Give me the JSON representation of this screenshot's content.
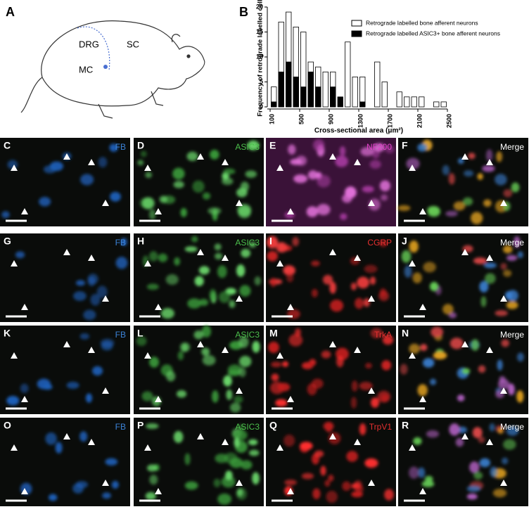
{
  "panel_a": {
    "letter": "A",
    "labels": [
      "DRG",
      "SC",
      "MC"
    ]
  },
  "chart_data": {
    "type": "histogram",
    "letter": "B",
    "x_label": "Cross-sectional area (μm²)",
    "y_label": "Frequency of retrograde labelled cells",
    "bins": [
      100,
      200,
      300,
      400,
      500,
      600,
      700,
      800,
      900,
      1000,
      1100,
      1200,
      1300,
      1400,
      1500,
      1600,
      1700,
      1800,
      1900,
      2000,
      2100,
      2200,
      2300,
      2400,
      2500
    ],
    "series": [
      {
        "name": "Retrograde labelled bone afferent neurons",
        "color": "#ffffff",
        "values": [
          4,
          17,
          19,
          16,
          15,
          9,
          8,
          7,
          7,
          0,
          13,
          6,
          6,
          0,
          9,
          5,
          0,
          3,
          2,
          2,
          2,
          0,
          1,
          1
        ]
      },
      {
        "name": "Retrograde labelled ASIC3+ bone afferent neurons",
        "color": "#000000",
        "values": [
          1,
          7,
          9,
          6,
          4,
          7,
          4,
          0,
          4,
          2,
          0,
          0,
          1,
          0,
          0,
          0,
          0,
          0,
          0,
          0,
          0,
          0,
          0,
          0
        ]
      }
    ],
    "xlim": [
      100,
      2500
    ],
    "xticks": [
      100,
      500,
      900,
      1300,
      1700,
      2100,
      2500
    ],
    "ylim": [
      0,
      20
    ],
    "yticks": [
      0,
      5,
      10,
      15,
      20
    ],
    "legend": "top-right"
  },
  "panels": [
    {
      "letter": "C",
      "stain": "FB",
      "color": "#3b82d6"
    },
    {
      "letter": "D",
      "stain": "ASIC3",
      "color": "#4cbf4c"
    },
    {
      "letter": "E",
      "stain": "NF200",
      "color": "#e040c8"
    },
    {
      "letter": "F",
      "stain": "Merge",
      "color": "#ffffff"
    },
    {
      "letter": "G",
      "stain": "FB",
      "color": "#3b82d6"
    },
    {
      "letter": "H",
      "stain": "ASIC3",
      "color": "#4cbf4c"
    },
    {
      "letter": "I",
      "stain": "CGRP",
      "color": "#e53030"
    },
    {
      "letter": "J",
      "stain": "Merge",
      "color": "#ffffff"
    },
    {
      "letter": "K",
      "stain": "FB",
      "color": "#3b82d6"
    },
    {
      "letter": "L",
      "stain": "ASIC3",
      "color": "#4cbf4c"
    },
    {
      "letter": "M",
      "stain": "TrkA",
      "color": "#e53030"
    },
    {
      "letter": "N",
      "stain": "Merge",
      "color": "#ffffff"
    },
    {
      "letter": "O",
      "stain": "FB",
      "color": "#3b82d6"
    },
    {
      "letter": "P",
      "stain": "ASIC3",
      "color": "#4cbf4c"
    },
    {
      "letter": "Q",
      "stain": "TrpV1",
      "color": "#e53030"
    },
    {
      "letter": "R",
      "stain": "Merge",
      "color": "#ffffff"
    }
  ]
}
